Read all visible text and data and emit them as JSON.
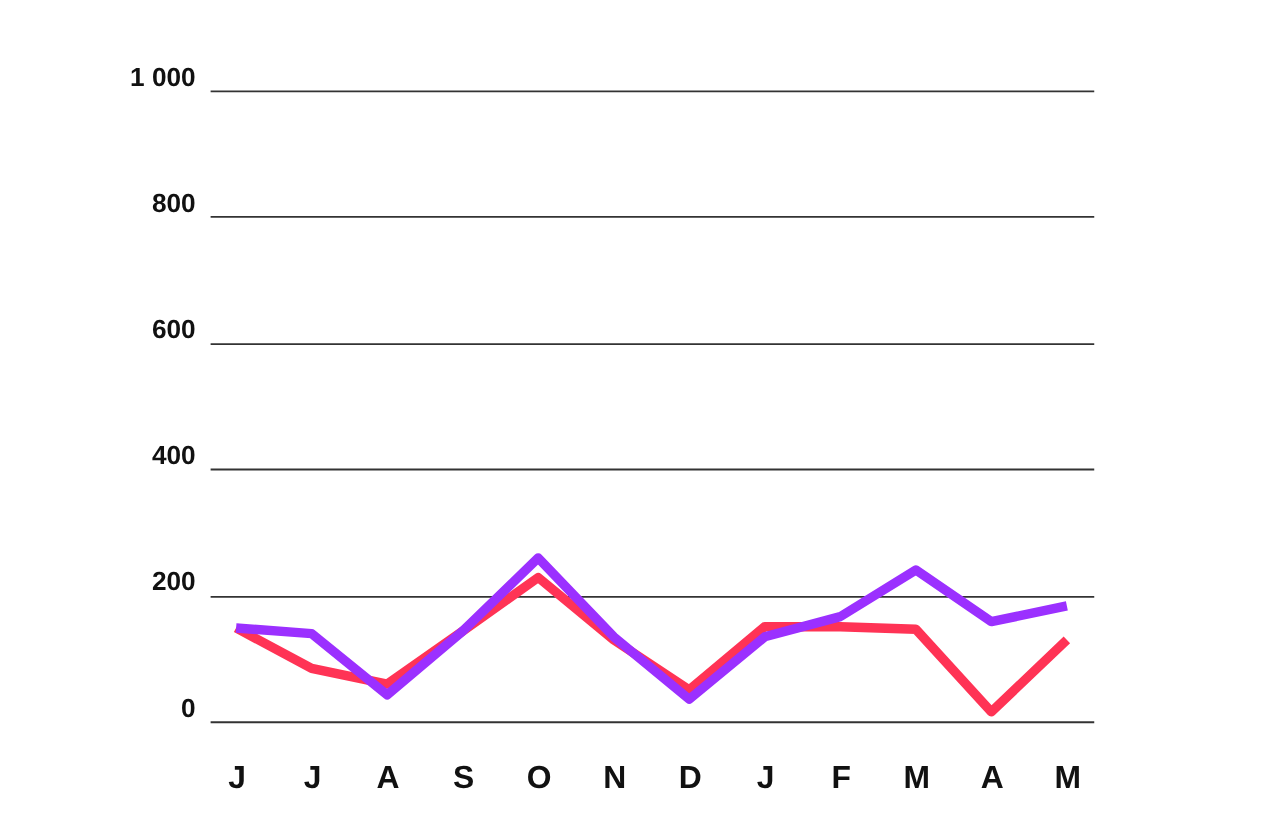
{
  "chart_data": {
    "type": "line",
    "categories": [
      "J",
      "J",
      "A",
      "S",
      "O",
      "N",
      "D",
      "J",
      "F",
      "M",
      "A",
      "M"
    ],
    "series": [
      {
        "color": "#ff3355",
        "values": [
          148,
          84,
          59,
          143,
          228,
          129,
          50,
          150,
          150,
          146,
          15,
          129
        ]
      },
      {
        "color": "#9b30ff",
        "values": [
          148,
          139,
          42,
          143,
          259,
          134,
          35,
          134,
          166,
          240,
          158,
          183
        ]
      }
    ],
    "ylim": [
      0,
      1000
    ],
    "yticks": [
      0,
      200,
      400,
      600,
      800,
      {
        "value": 1000,
        "label": "1 000"
      }
    ],
    "grid": "y",
    "legend": false,
    "marker": "none",
    "line_style": "solid"
  }
}
